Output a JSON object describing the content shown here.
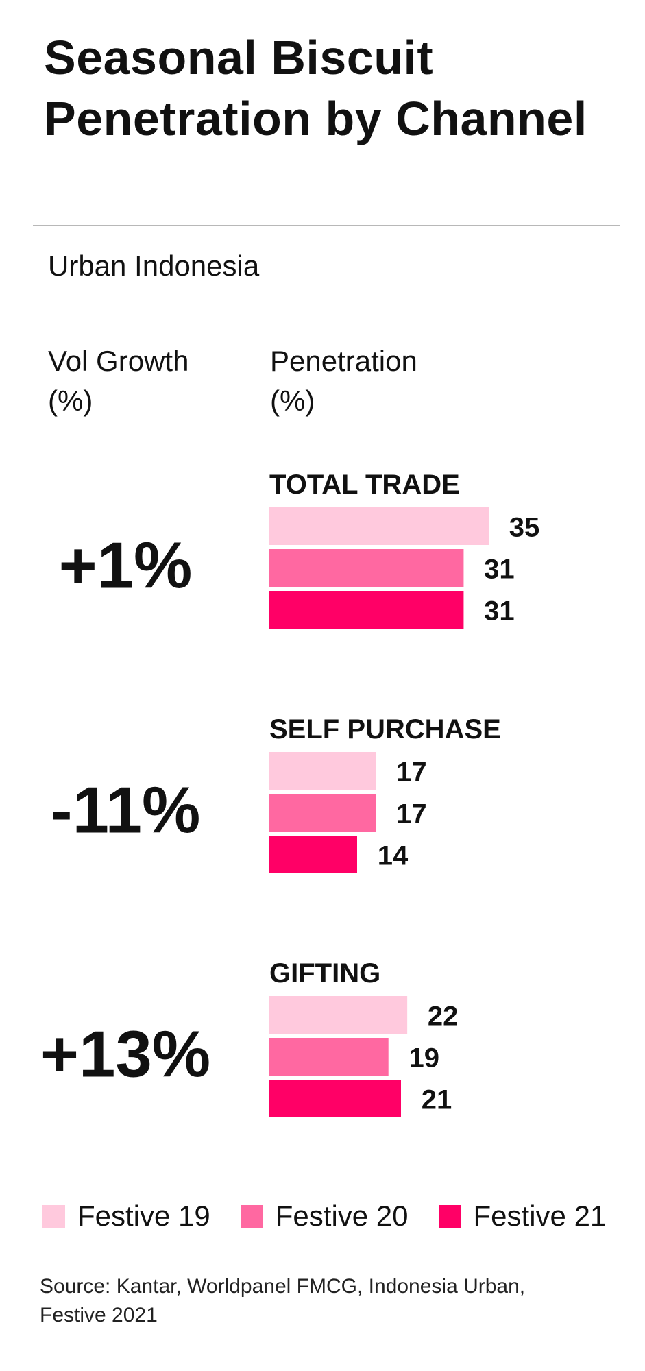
{
  "header": {
    "title": "Seasonal Biscuit Penetration by Channel",
    "subtitle": "Urban Indonesia"
  },
  "columns": {
    "growth_line1": "Vol Growth",
    "growth_line2": "(%)",
    "penetration_line1": "Penetration",
    "penetration_line2": "(%)"
  },
  "colors": {
    "festive_19": "#ffc9dd",
    "festive_20": "#ff68a1",
    "festive_21": "#ff0066",
    "text": "#111111"
  },
  "chart_data": {
    "type": "bar",
    "orientation": "horizontal",
    "groups": [
      {
        "label": "TOTAL TRADE",
        "vol_growth": "+1%",
        "values": [
          35,
          31,
          31
        ]
      },
      {
        "label": "SELF PURCHASE",
        "vol_growth": "-11%",
        "values": [
          17,
          17,
          14
        ]
      },
      {
        "label": "GIFTING",
        "vol_growth": "+13%",
        "values": [
          22,
          19,
          21
        ]
      }
    ],
    "series": [
      {
        "name": "Festive 19"
      },
      {
        "name": "Festive 20"
      },
      {
        "name": "Festive 21"
      }
    ],
    "xlim": [
      0,
      35
    ],
    "grid": false,
    "legend_position": "bottom"
  },
  "legend": {
    "items": [
      {
        "label": "Festive 19"
      },
      {
        "label": "Festive 20"
      },
      {
        "label": "Festive 21"
      }
    ]
  },
  "footer": {
    "source": "Source: Kantar, Worldpanel FMCG, Indonesia Urban, Festive 2021"
  }
}
